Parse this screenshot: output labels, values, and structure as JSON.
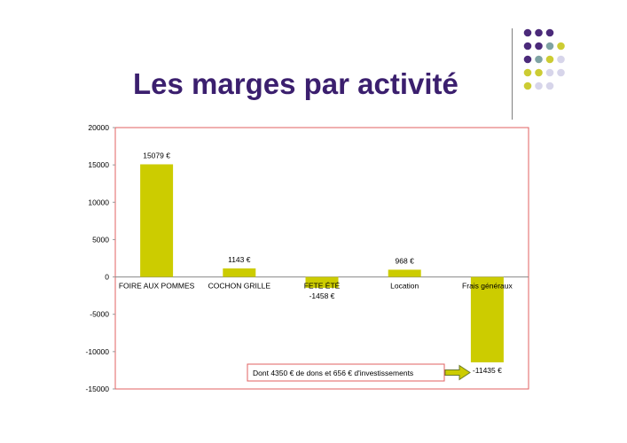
{
  "slide": {
    "title": "Les marges par activité"
  },
  "colors": {
    "bar": "#cccc00",
    "title": "#3b1f6e",
    "frame": "#e06060",
    "purple": "#4b2a7a",
    "teal": "#7fa3a3",
    "lime": "#cccc33",
    "lavender": "#d7d5ea"
  },
  "chart_data": {
    "type": "bar",
    "title": "",
    "xlabel": "",
    "ylabel": "",
    "categories": [
      "FOIRE AUX POMMES",
      "COCHON GRILLE",
      "FETE ÉTÉ",
      "Location",
      "Frais généraux"
    ],
    "values": [
      15079,
      1143,
      -1458,
      968,
      -11435
    ],
    "data_labels": [
      "15079 €",
      "1143 €",
      "-1458 €",
      "968 €",
      "-11435 €"
    ],
    "ylim": [
      -15000,
      20000
    ],
    "yticks": [
      20000,
      15000,
      10000,
      5000,
      0,
      -5000,
      -10000,
      -15000
    ],
    "grid": false,
    "legend": "none",
    "annotation": {
      "text": "Dont 4350 € de dons et  656 € d'investissements",
      "target": "Frais généraux"
    }
  }
}
